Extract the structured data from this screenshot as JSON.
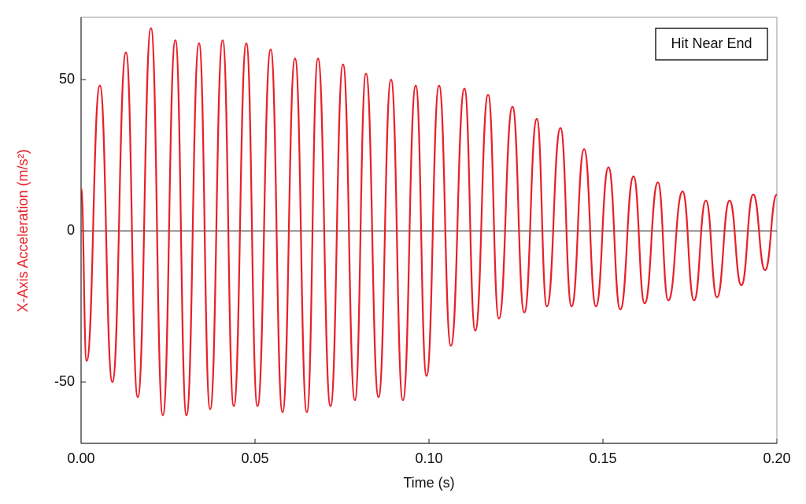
{
  "chart_data": {
    "type": "line",
    "xlabel": "Time (s)",
    "ylabel": "X-Axis Acceleration (m/s²)",
    "x": [
      0.0,
      0.0016,
      0.0054,
      0.009,
      0.0129,
      0.0163,
      0.0201,
      0.0235,
      0.0271,
      0.0303,
      0.0339,
      0.0371,
      0.0407,
      0.0439,
      0.0475,
      0.0507,
      0.0545,
      0.0579,
      0.0615,
      0.0649,
      0.0681,
      0.0717,
      0.0753,
      0.0787,
      0.0819,
      0.0855,
      0.0891,
      0.0925,
      0.0962,
      0.0993,
      0.1029,
      0.1063,
      0.1102,
      0.1133,
      0.117,
      0.1201,
      0.124,
      0.1274,
      0.131,
      0.1339,
      0.1378,
      0.141,
      0.1446,
      0.148,
      0.1516,
      0.155,
      0.1588,
      0.162,
      0.1658,
      0.1688,
      0.1729,
      0.1762,
      0.1796,
      0.1828,
      0.1864,
      0.1898,
      0.1932,
      0.1966,
      0.2
    ],
    "series": [
      {
        "name": "Hit Near End",
        "color": "#e8202a",
        "values": [
          14,
          -43,
          48,
          -50,
          59,
          -55,
          67,
          -61,
          63,
          -61,
          62,
          -59,
          63,
          -58,
          62,
          -58,
          60,
          -60,
          57,
          -60,
          57,
          -58,
          55,
          -56,
          52,
          -55,
          50,
          -56,
          48,
          -48,
          48,
          -38,
          47,
          -33,
          45,
          -29,
          41,
          -27,
          37,
          -25,
          34,
          -25,
          27,
          -25,
          21,
          -26,
          18,
          -24,
          16,
          -23,
          13,
          -23,
          10,
          -22,
          10,
          -18,
          12,
          -13,
          12
        ]
      }
    ],
    "xlim": [
      0,
      0.2
    ],
    "ylim": [
      -70.3,
      70.6
    ],
    "xticks": [
      {
        "value": 0,
        "label": "0.00"
      },
      {
        "value": 0.05,
        "label": "0.05"
      },
      {
        "value": 0.1,
        "label": "0.10"
      },
      {
        "value": 0.15,
        "label": "0.15"
      },
      {
        "value": 0.2,
        "label": "0.20"
      }
    ],
    "yticks": [
      -50,
      0,
      50
    ],
    "zero_line": true,
    "legend": "upper right"
  }
}
